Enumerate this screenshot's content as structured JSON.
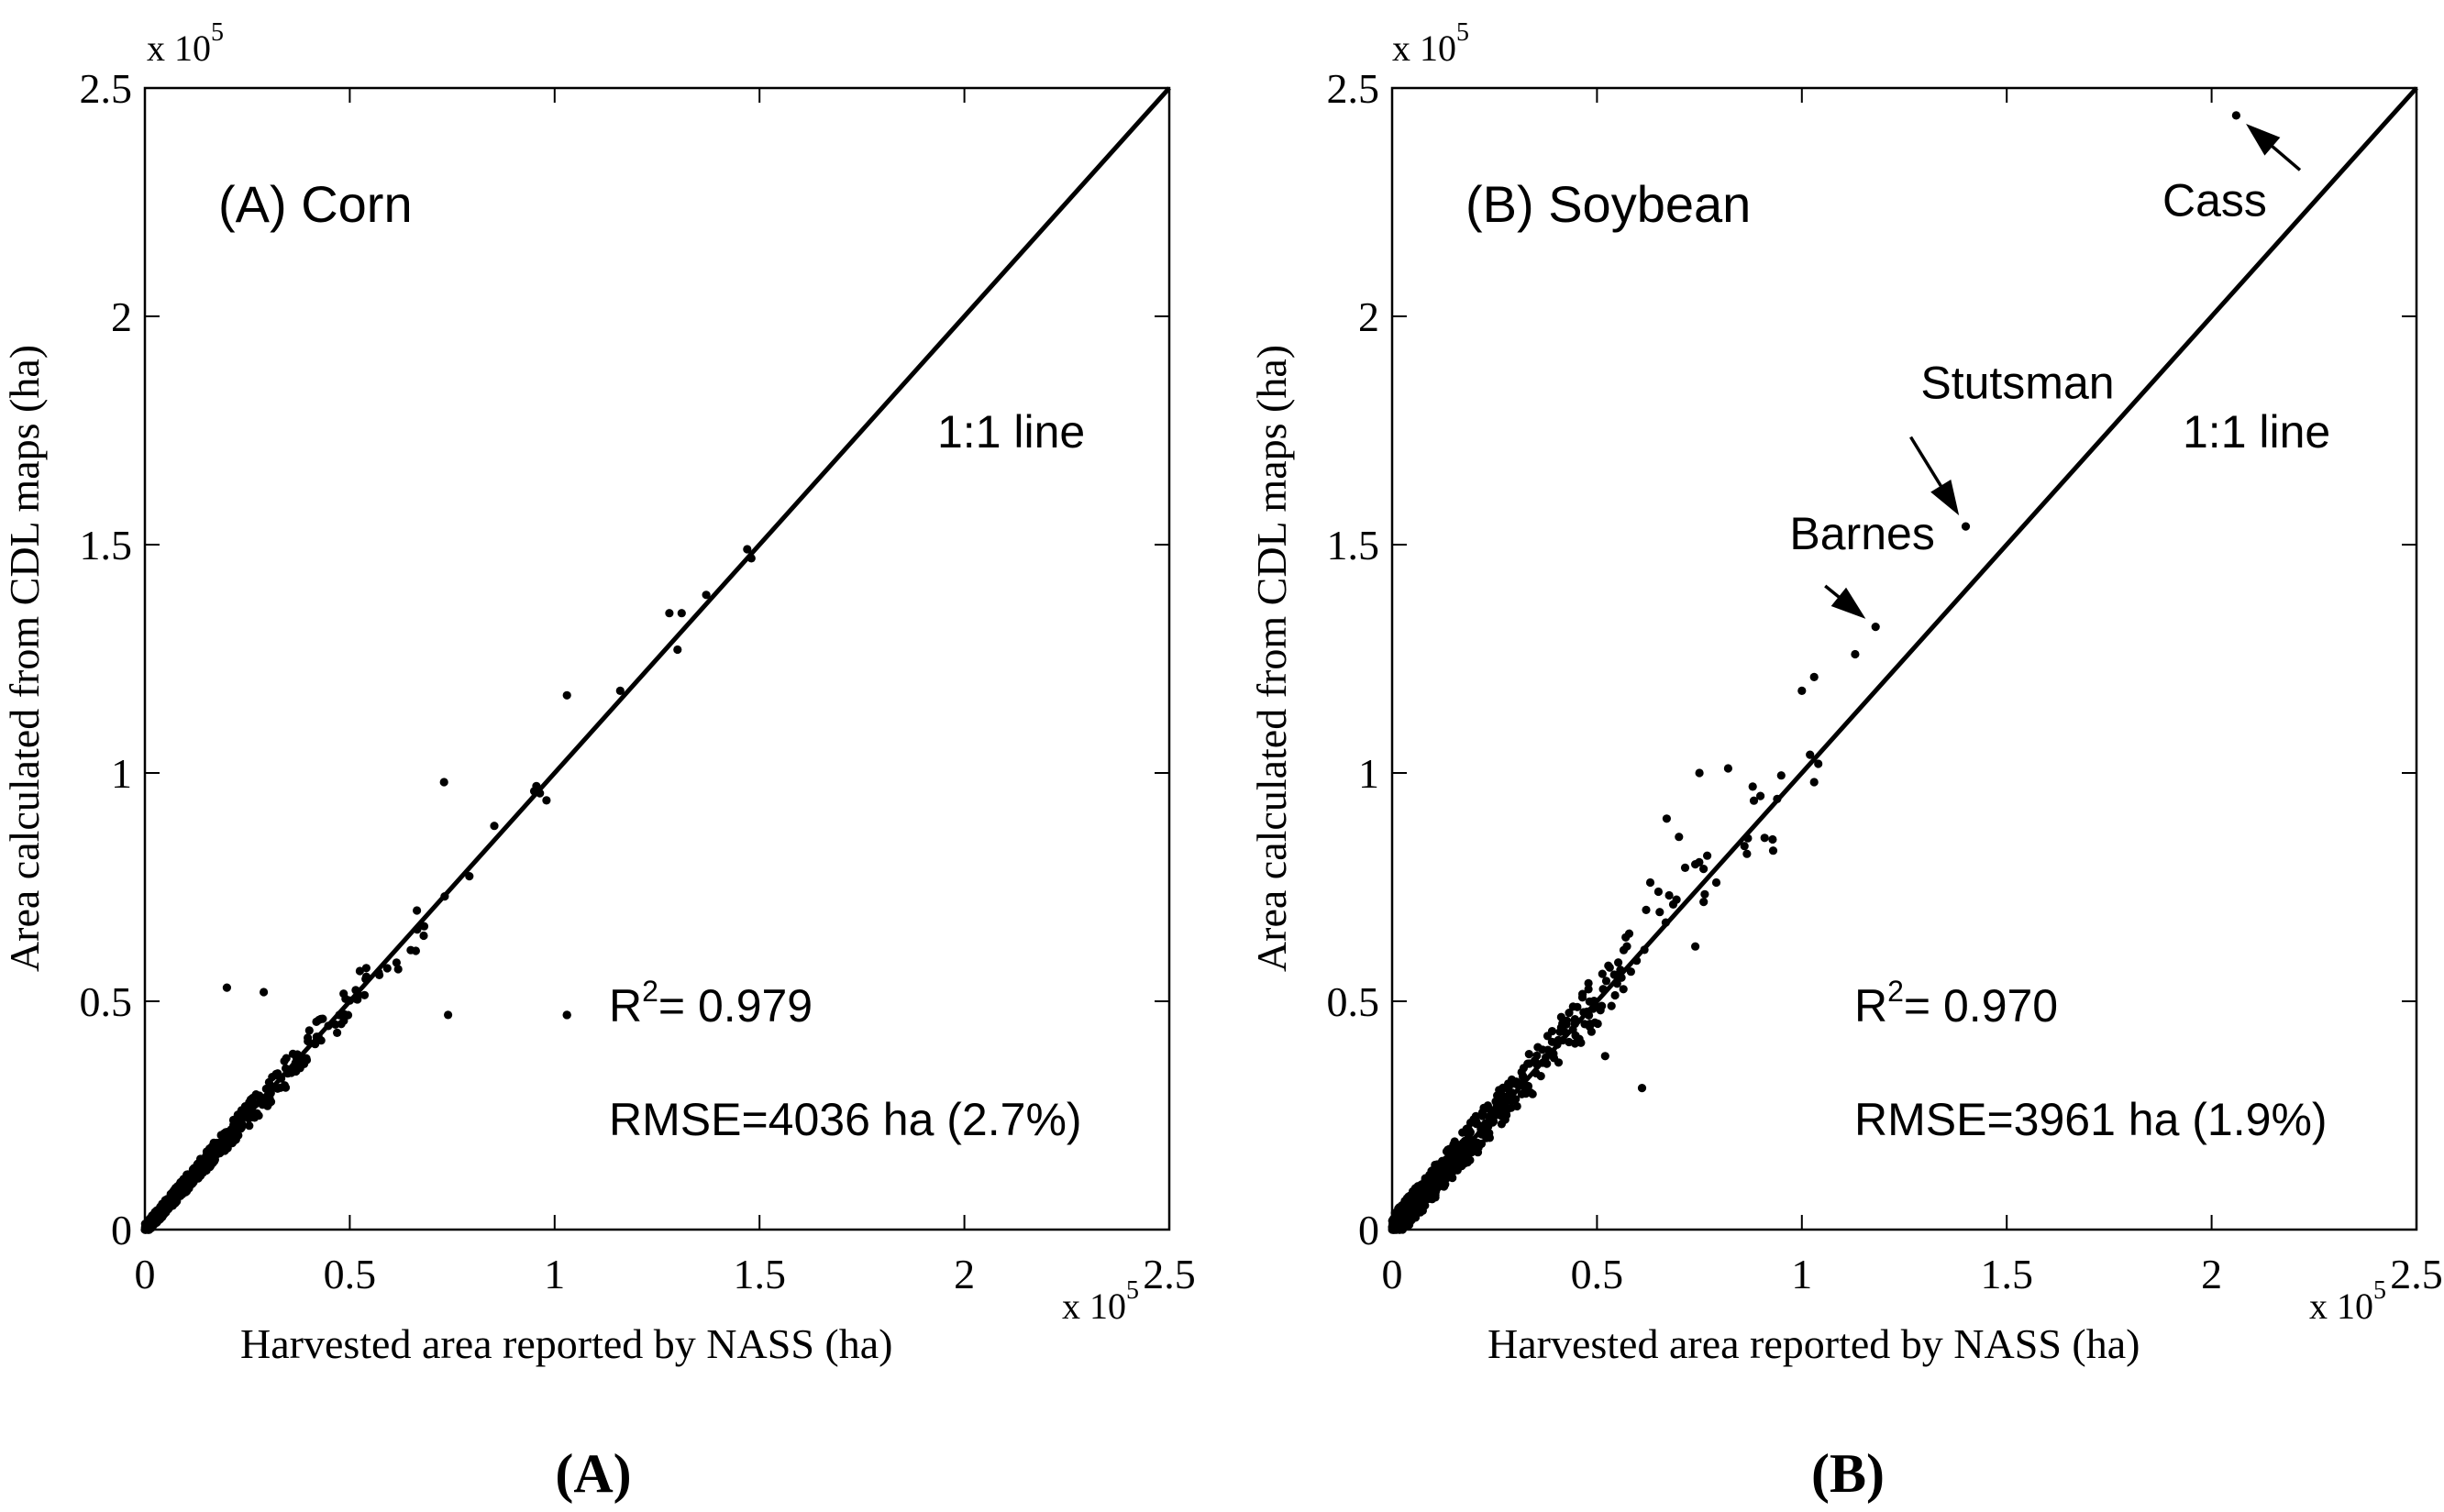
{
  "chart_data": [
    {
      "type": "scatter",
      "panel": "A",
      "title": "(A) Corn",
      "panel_caption": "(A)",
      "xlabel": "Harvested area reported by NASS (ha)",
      "ylabel": "Area calculated from CDL maps (ha)",
      "x_multiplier": "x 10",
      "y_multiplier": "x 10",
      "exponent": "5",
      "xlim": [
        0,
        2.5
      ],
      "ylim": [
        0,
        2.5
      ],
      "xticks": [
        "0",
        "0.5",
        "1",
        "1.5",
        "2",
        "2.5"
      ],
      "yticks": [
        "0",
        "0.5",
        "1",
        "1.5",
        "2",
        "2.5"
      ],
      "unit_scale": 100000,
      "reference_line": {
        "label": "1:1 line",
        "from": [
          0,
          0
        ],
        "to": [
          2.5,
          2.5
        ]
      },
      "stats": {
        "r2_label": "R",
        "r2_sup": "2",
        "r2_value": "= 0.979",
        "rmse": "RMSE=4036 ha (2.7%)"
      },
      "outliers": [
        [
          0.73,
          0.98
        ],
        [
          0.2,
          0.53
        ],
        [
          0.29,
          0.52
        ],
        [
          0.74,
          0.47
        ],
        [
          1.03,
          0.47
        ],
        [
          1.03,
          1.17
        ],
        [
          1.28,
          1.35
        ],
        [
          1.31,
          1.35
        ],
        [
          1.37,
          1.39
        ],
        [
          1.47,
          1.49
        ],
        [
          1.48,
          1.47
        ],
        [
          1.16,
          1.18
        ],
        [
          1.3,
          1.27
        ],
        [
          0.95,
          0.96
        ],
        [
          0.98,
          0.94
        ]
      ],
      "generated_points": {
        "count": 620,
        "seed": 11,
        "scale": 0.16,
        "max": 1.0,
        "noise": 0.012
      }
    },
    {
      "type": "scatter",
      "panel": "B",
      "title": "(B) Soybean",
      "panel_caption": "(B)",
      "xlabel": "Harvested area reported by NASS (ha)",
      "ylabel": "Area calculated from CDL maps (ha)",
      "x_multiplier": "x 10",
      "y_multiplier": "x 10",
      "exponent": "5",
      "xlim": [
        0,
        2.5
      ],
      "ylim": [
        0,
        2.5
      ],
      "xticks": [
        "0",
        "0.5",
        "1",
        "1.5",
        "2",
        "2.5"
      ],
      "yticks": [
        "0",
        "0.5",
        "1",
        "1.5",
        "2",
        "2.5"
      ],
      "unit_scale": 100000,
      "reference_line": {
        "label": "1:1 line",
        "from": [
          0,
          0
        ],
        "to": [
          2.5,
          2.5
        ]
      },
      "stats": {
        "r2_label": "R",
        "r2_sup": "2",
        "r2_value": "= 0.970",
        "rmse": "RMSE=3961 ha (1.9%)"
      },
      "annotations": [
        {
          "label": "Cass",
          "point": [
            2.06,
            2.44
          ],
          "text_at": [
            1.88,
            2.22
          ]
        },
        {
          "label": "Stutsman",
          "point": [
            1.4,
            1.54
          ],
          "text_at": [
            1.29,
            1.82
          ]
        },
        {
          "label": "Barnes",
          "point": [
            1.18,
            1.32
          ],
          "text_at": [
            0.97,
            1.49
          ]
        }
      ],
      "outliers": [
        [
          2.06,
          2.44
        ],
        [
          1.4,
          1.54
        ],
        [
          1.18,
          1.32
        ],
        [
          1.13,
          1.26
        ],
        [
          1.0,
          1.18
        ],
        [
          1.03,
          1.21
        ],
        [
          0.82,
          1.01
        ],
        [
          0.75,
          1.0
        ],
        [
          0.88,
          0.97
        ],
        [
          0.67,
          0.9
        ],
        [
          0.7,
          0.86
        ],
        [
          0.74,
          0.8
        ],
        [
          0.76,
          0.79
        ],
        [
          0.74,
          0.62
        ],
        [
          0.62,
          0.7
        ],
        [
          0.61,
          0.31
        ],
        [
          0.52,
          0.38
        ],
        [
          0.47,
          0.45
        ],
        [
          0.57,
          0.64
        ],
        [
          1.02,
          1.04
        ],
        [
          1.04,
          1.02
        ],
        [
          1.03,
          0.98
        ],
        [
          0.93,
          0.83
        ],
        [
          0.86,
          0.84
        ],
        [
          0.63,
          0.76
        ],
        [
          0.65,
          0.74
        ]
      ],
      "generated_points": {
        "count": 560,
        "seed": 29,
        "scale": 0.2,
        "max": 0.95,
        "noise": 0.03
      }
    }
  ]
}
